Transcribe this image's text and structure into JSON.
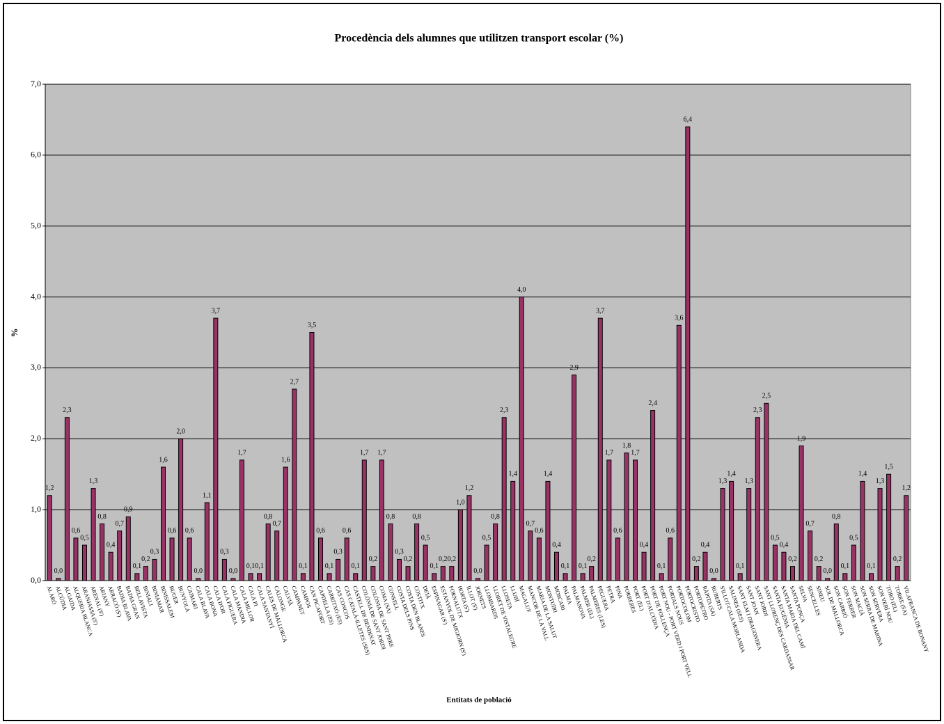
{
  "chart_data": {
    "type": "bar",
    "title": "Procedència dels alumnes que utilitzen transport escolar (%)",
    "x_label": "Entitats de població",
    "y_label": "%",
    "categories": [
      "ALARÓ",
      "ALCÚDIA",
      "ALGAIDA",
      "ALQUERIA BLANCA",
      "ARANJASSA (S')",
      "ARENAL (S')",
      "ARIANY",
      "ARRACÓ (S')",
      "BADIA BLAVA",
      "BADIA GRAN",
      "BELLAVISTA",
      "BINIALI",
      "BINIAMAR",
      "BINISSALEM",
      "BUGER",
      "BUNYOLA",
      "CAIMARI",
      "CALA BLAVA",
      "CALA BONA",
      "CALA D'OR",
      "CALA FIGUERA",
      "CALA MANDIA",
      "CALA MILLOR",
      "CALA PI",
      "CALA SANTANYÍ",
      "CALES DE MALLORCA",
      "CALONGE",
      "CALVIÀ",
      "CAMPANET",
      "CAMPOS",
      "CAN PICAFORT",
      "CAPDELLA (ES)",
      "CARRITXÓ (ES)",
      "CAS CONCOS",
      "CAS CATALÀ-ILLETES (SES)",
      "CASTELL DE BENDINAT",
      "COLÒNIA DE SANT JORDI",
      "COLÒNIA DE SANT PERE",
      "COMA (SA)",
      "CONSELL",
      "COSTA DELS PINS",
      "COSTA DEN BLANES",
      "COSTITX",
      "DEIÀ",
      "ESPINAGAR (S')",
      "ESTANYOL DE MIGJORN (S')",
      "FORNALUTX",
      "HORTA (S')",
      "ILLOT (S')",
      "JORNETS",
      "LLOMBARDS",
      "LLORET DE VISTALEGRE",
      "LLOSETA",
      "LLUBÍ",
      "MAGALUF",
      "MANCOR DE LA VALL",
      "MARIA DE LA SALUT",
      "MONTUÏRI",
      "MOSCARI",
      "PALMA",
      "PALMANOVA",
      "PALMER (EL)",
      "PALMERES (LES)",
      "PEGUERA",
      "PETRA",
      "PINA",
      "PORRERES",
      "PORT (EL)",
      "PORT D'ALCÚDIA",
      "PORT DE POLLENÇA",
      "PORT NOU - PORT VERD I PORT VELL",
      "PORTALS NOUS",
      "PORTOCOLOM",
      "PORTOCRISTO",
      "PORTOPETRO",
      "RÀPITA (SA)",
      "RUBERTS",
      "S'ILLOT-CALA MORLANDA",
      "SALINES (SES)",
      "SANT ELM I DRAGONERA",
      "SANT JOAN",
      "SANT JORDI",
      "SANT LLORENÇ DES CARDASSAR",
      "SANTA EUGÈNIA",
      "SANTA MARIA DEL CAMÍ",
      "SANTA PONÇA",
      "SELVA",
      "SENCELLES",
      "SINEU",
      "SOL DE MALLORCA",
      "SON CARRIÓ",
      "SON FERRER",
      "SON MACIÀ",
      "SON SERRA DE MARINA",
      "SON SERVERA",
      "SON VERÍ NOU",
      "TORO (EL)",
      "TORRE (SA)",
      "VILAFRANCA DE BONANY"
    ],
    "values": [
      1.2,
      0.03,
      2.3,
      0.6,
      0.5,
      1.3,
      0.8,
      0.4,
      0.7,
      0.9,
      0.1,
      0.2,
      0.3,
      1.6,
      0.6,
      2.0,
      0.6,
      0.03,
      1.1,
      3.7,
      0.3,
      0.03,
      1.7,
      0.1,
      0.1,
      0.8,
      0.7,
      1.6,
      2.7,
      0.1,
      3.5,
      0.6,
      0.1,
      0.3,
      0.6,
      0.1,
      1.7,
      0.2,
      1.7,
      0.8,
      0.3,
      0.2,
      0.8,
      0.5,
      0.1,
      0.2,
      0.2,
      1.0,
      1.2,
      0.03,
      0.5,
      0.8,
      2.3,
      1.4,
      4.0,
      0.7,
      0.6,
      1.4,
      0.4,
      0.1,
      2.9,
      0.1,
      0.2,
      3.7,
      1.7,
      0.6,
      1.8,
      1.7,
      0.4,
      2.4,
      0.1,
      0.6,
      3.6,
      6.4,
      0.2,
      0.4,
      0.03,
      1.3,
      1.4,
      0.1,
      1.3,
      2.3,
      2.5,
      0.5,
      0.4,
      0.2,
      1.9,
      0.7,
      0.2,
      0.03,
      0.8,
      0.1,
      0.5,
      1.4,
      0.1,
      1.3,
      1.5,
      0.2,
      1.2
    ],
    "value_labels": [
      "1,2",
      "0,0",
      "2,3",
      "0,6",
      "0,5",
      "1,3",
      "0,8",
      "0,4",
      "0,7",
      "0,9",
      "0,1",
      "0,2",
      "0,3",
      "1,6",
      "0,6",
      "2,0",
      "0,6",
      "0,0",
      "1,1",
      "3,7",
      "0,3",
      "0,0",
      "1,7",
      "0,1",
      "0,1",
      "0,8",
      "0,7",
      "1,6",
      "2,7",
      "0,1",
      "3,5",
      "0,6",
      "0,1",
      "0,3",
      "0,6",
      "0,1",
      "1,7",
      "0,2",
      "1,7",
      "0,8",
      "0,3",
      "0,2",
      "0,8",
      "0,5",
      "0,1",
      "0,2",
      "0,2",
      "1,0",
      "1,2",
      "0,0",
      "0,5",
      "0,8",
      "2,3",
      "1,4",
      "4,0",
      "0,7",
      "0,6",
      "1,4",
      "0,4",
      "0,1",
      "2,9",
      "0,1",
      "0,2",
      "3,7",
      "1,7",
      "0,6",
      "1,8",
      "1,7",
      "0,4",
      "2,4",
      "0,1",
      "0,6",
      "3,6",
      "6,4",
      "0,2",
      "0,4",
      "0,0",
      "1,3",
      "1,4",
      "0,1",
      "1,3",
      "2,3",
      "2,5",
      "0,5",
      "0,4",
      "0,2",
      "1,9",
      "0,7",
      "0,2",
      "0,0",
      "0,8",
      "0,1",
      "0,5",
      "1,4",
      "0,1",
      "1,3",
      "1,5",
      "0,2",
      "1,2"
    ],
    "color": "#993366",
    "ylim": [
      0,
      7
    ],
    "yticks": [
      {
        "value": 0,
        "label": "0,0"
      },
      {
        "value": 1,
        "label": "1,0"
      },
      {
        "value": 2,
        "label": "2,0"
      },
      {
        "value": 3,
        "label": "3,0"
      },
      {
        "value": 4,
        "label": "4,0"
      },
      {
        "value": 5,
        "label": "5,0"
      },
      {
        "value": 6,
        "label": "6,0"
      },
      {
        "value": 7,
        "label": "7,0"
      }
    ],
    "grid": true
  }
}
